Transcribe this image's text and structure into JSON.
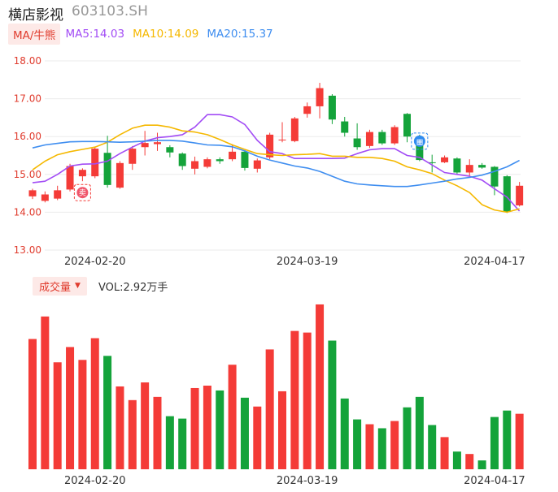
{
  "header": {
    "name": "横店影视",
    "code": "603103.SH"
  },
  "ma_legend": {
    "tab_label": "MA/牛熊",
    "items": [
      {
        "key": "ma5",
        "label": "MA5:14.03",
        "color": "#a24cf5"
      },
      {
        "key": "ma10",
        "label": "MA10:14.09",
        "color": "#f5b800"
      },
      {
        "key": "ma20",
        "label": "MA20:15.37",
        "color": "#3f8ef0"
      }
    ]
  },
  "volume_header": {
    "tab_label": "成交量",
    "caret": "▼",
    "vol_label": "VOL:2.92万手"
  },
  "colors": {
    "up": "#f43b37",
    "down": "#14a33a",
    "grid": "#ebebeb",
    "axis_text": "#e03c2e"
  },
  "chart_data": {
    "type": "candlestick",
    "y_ticks": [
      "18.00",
      "17.00",
      "16.00",
      "15.00",
      "14.00",
      "13.00"
    ],
    "ylim": [
      13.0,
      18.0
    ],
    "x_ticks": [
      {
        "label": "2024-02-20",
        "index": 5
      },
      {
        "label": "2024-03-19",
        "index": 22
      },
      {
        "label": "2024-04-17",
        "index": 37
      }
    ],
    "candles": [
      {
        "o": 14.42,
        "c": 14.58,
        "h": 14.62,
        "l": 14.35
      },
      {
        "o": 14.3,
        "c": 14.47,
        "h": 14.55,
        "l": 14.26
      },
      {
        "o": 14.36,
        "c": 14.58,
        "h": 14.7,
        "l": 14.32
      },
      {
        "o": 14.6,
        "c": 15.22,
        "h": 15.28,
        "l": 14.55
      },
      {
        "o": 14.95,
        "c": 15.12,
        "h": 15.16,
        "l": 14.82
      },
      {
        "o": 14.95,
        "c": 15.68,
        "h": 15.72,
        "l": 14.9
      },
      {
        "o": 15.57,
        "c": 14.72,
        "h": 16.02,
        "l": 14.65
      },
      {
        "o": 14.65,
        "c": 15.3,
        "h": 15.35,
        "l": 14.62
      },
      {
        "o": 15.28,
        "c": 15.68,
        "h": 15.75,
        "l": 15.12
      },
      {
        "o": 15.72,
        "c": 15.83,
        "h": 16.15,
        "l": 15.5
      },
      {
        "o": 15.8,
        "c": 15.85,
        "h": 16.1,
        "l": 15.62
      },
      {
        "o": 15.72,
        "c": 15.58,
        "h": 15.77,
        "l": 15.45
      },
      {
        "o": 15.55,
        "c": 15.22,
        "h": 15.58,
        "l": 15.12
      },
      {
        "o": 15.15,
        "c": 15.35,
        "h": 15.47,
        "l": 15.0
      },
      {
        "o": 15.2,
        "c": 15.4,
        "h": 15.45,
        "l": 15.16
      },
      {
        "o": 15.4,
        "c": 15.35,
        "h": 15.45,
        "l": 15.28
      },
      {
        "o": 15.4,
        "c": 15.6,
        "h": 15.8,
        "l": 15.35
      },
      {
        "o": 15.6,
        "c": 15.17,
        "h": 15.64,
        "l": 15.1
      },
      {
        "o": 15.15,
        "c": 15.37,
        "h": 15.42,
        "l": 15.05
      },
      {
        "o": 15.45,
        "c": 16.05,
        "h": 16.1,
        "l": 15.4
      },
      {
        "o": 15.9,
        "c": 15.92,
        "h": 16.38,
        "l": 15.85
      },
      {
        "o": 15.88,
        "c": 16.48,
        "h": 16.52,
        "l": 15.85
      },
      {
        "o": 16.6,
        "c": 16.8,
        "h": 16.9,
        "l": 16.5
      },
      {
        "o": 16.8,
        "c": 17.28,
        "h": 17.42,
        "l": 16.48
      },
      {
        "o": 17.08,
        "c": 16.45,
        "h": 17.12,
        "l": 16.33
      },
      {
        "o": 16.4,
        "c": 16.1,
        "h": 16.52,
        "l": 16.0
      },
      {
        "o": 15.95,
        "c": 15.72,
        "h": 16.35,
        "l": 15.65
      },
      {
        "o": 15.75,
        "c": 16.12,
        "h": 16.18,
        "l": 15.7
      },
      {
        "o": 16.12,
        "c": 15.82,
        "h": 16.18,
        "l": 15.78
      },
      {
        "o": 15.82,
        "c": 16.25,
        "h": 16.3,
        "l": 15.78
      },
      {
        "o": 16.6,
        "c": 16.0,
        "h": 16.62,
        "l": 15.85
      },
      {
        "o": 16.0,
        "c": 15.38,
        "h": 16.05,
        "l": 15.35
      },
      {
        "o": 15.32,
        "c": 15.3,
        "h": 15.52,
        "l": 15.05
      },
      {
        "o": 15.32,
        "c": 15.45,
        "h": 15.5,
        "l": 15.3
      },
      {
        "o": 15.42,
        "c": 15.05,
        "h": 15.45,
        "l": 15.0
      },
      {
        "o": 15.05,
        "c": 15.25,
        "h": 15.4,
        "l": 14.95
      },
      {
        "o": 15.25,
        "c": 15.18,
        "h": 15.3,
        "l": 15.15
      },
      {
        "o": 15.2,
        "c": 14.68,
        "h": 15.22,
        "l": 14.45
      },
      {
        "o": 14.95,
        "c": 14.02,
        "h": 14.98,
        "l": 13.98
      },
      {
        "o": 14.18,
        "c": 14.7,
        "h": 14.8,
        "l": 14.15
      }
    ],
    "series": [
      {
        "name": "MA5",
        "color": "#a24cf5",
        "values": [
          14.78,
          14.82,
          15.0,
          15.22,
          15.27,
          15.28,
          15.35,
          15.55,
          15.72,
          15.88,
          15.97,
          16.0,
          16.05,
          16.25,
          16.58,
          16.58,
          16.52,
          16.32,
          15.9,
          15.6,
          15.55,
          15.42,
          15.42,
          15.42,
          15.42,
          15.43,
          15.55,
          15.65,
          15.68,
          15.68,
          15.5,
          15.45,
          15.25,
          15.05,
          15.0,
          14.95,
          14.85,
          14.62,
          14.4,
          14.03
        ]
      },
      {
        "name": "MA10",
        "color": "#f5b800",
        "values": [
          15.12,
          15.35,
          15.52,
          15.6,
          15.66,
          15.72,
          15.85,
          16.05,
          16.22,
          16.3,
          16.3,
          16.25,
          16.15,
          16.12,
          16.05,
          15.92,
          15.78,
          15.66,
          15.55,
          15.52,
          15.5,
          15.52,
          15.53,
          15.55,
          15.48,
          15.48,
          15.45,
          15.45,
          15.42,
          15.35,
          15.2,
          15.12,
          15.02,
          14.85,
          14.7,
          14.52,
          14.2,
          14.06,
          14.0,
          14.09
        ]
      },
      {
        "name": "MA20",
        "color": "#3f8ef0",
        "values": [
          15.7,
          15.78,
          15.82,
          15.86,
          15.87,
          15.87,
          15.86,
          15.85,
          15.86,
          15.88,
          15.9,
          15.9,
          15.88,
          15.83,
          15.78,
          15.77,
          15.73,
          15.62,
          15.48,
          15.38,
          15.3,
          15.22,
          15.17,
          15.08,
          14.95,
          14.82,
          14.75,
          14.72,
          14.7,
          14.68,
          14.68,
          14.72,
          14.77,
          14.82,
          14.88,
          14.92,
          14.98,
          15.08,
          15.2,
          15.37
        ]
      }
    ],
    "volume": {
      "ylim": [
        0,
        21000
      ],
      "values": [
        16200,
        19000,
        13300,
        15200,
        13600,
        16300,
        14100,
        10300,
        8600,
        10800,
        9000,
        6600,
        6300,
        10100,
        10400,
        9800,
        13000,
        8900,
        7800,
        14900,
        9700,
        17200,
        17000,
        20500,
        16000,
        8800,
        6200,
        5600,
        5100,
        6000,
        7700,
        9000,
        5500,
        4000,
        2200,
        1900,
        1100,
        6500,
        7300,
        6900
      ]
    },
    "markers": [
      {
        "index": 4,
        "type": "buy-badge",
        "glyph": "卖"
      },
      {
        "index": 31,
        "type": "info-badge",
        "glyph": "▦"
      }
    ]
  }
}
